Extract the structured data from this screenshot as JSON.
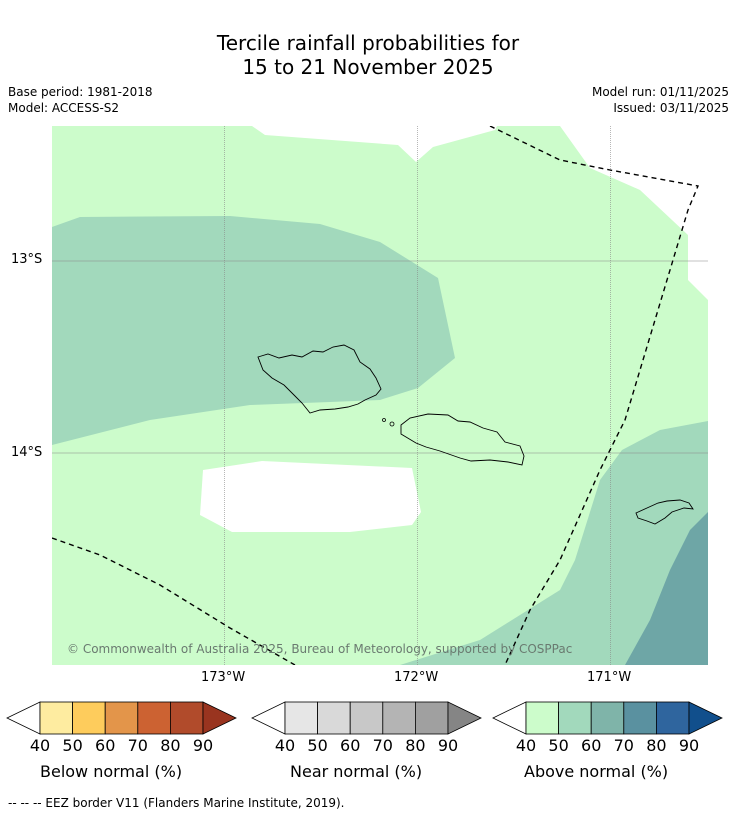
{
  "title": {
    "line1": "Tercile rainfall probabilities for",
    "line2": "15 to 21 November 2025"
  },
  "meta": {
    "base_period": "Base period: 1981-2018",
    "model": "Model: ACCESS-S2",
    "model_run": "Model run: 01/11/2025",
    "issued": "Issued: 03/11/2025"
  },
  "map": {
    "lat_labels": [
      "13°S",
      "14°S"
    ],
    "lon_labels": [
      "173°W",
      "172°W",
      "171°W"
    ],
    "copyright": "© Commonwealth of Australia 2025, Bureau of Meteorology, supported by COSPPac"
  },
  "colorbars": [
    {
      "label": "Below normal (%)",
      "ticks": [
        "40",
        "50",
        "60",
        "70",
        "80",
        "90"
      ],
      "colors": [
        "#ffffff",
        "#feeca0",
        "#fecc5c",
        "#e3954a",
        "#cc6232",
        "#b14b2b",
        "#99341f"
      ]
    },
    {
      "label": "Near normal (%)",
      "ticks": [
        "40",
        "50",
        "60",
        "70",
        "80",
        "90"
      ],
      "colors": [
        "#ffffff",
        "#e6e6e6",
        "#d9d9d9",
        "#c8c8c8",
        "#b4b4b4",
        "#a0a0a0",
        "#858585"
      ]
    },
    {
      "label": "Above normal (%)",
      "ticks": [
        "40",
        "50",
        "60",
        "70",
        "80",
        "90"
      ],
      "colors": [
        "#ffffff",
        "#ccfccb",
        "#a2d9bc",
        "#7fb4a9",
        "#5a91a0",
        "#2f659e",
        "#114f8c"
      ]
    }
  ],
  "footer": "--  --  -- EEZ border V11 (Flanders Marine Institute, 2019)."
}
